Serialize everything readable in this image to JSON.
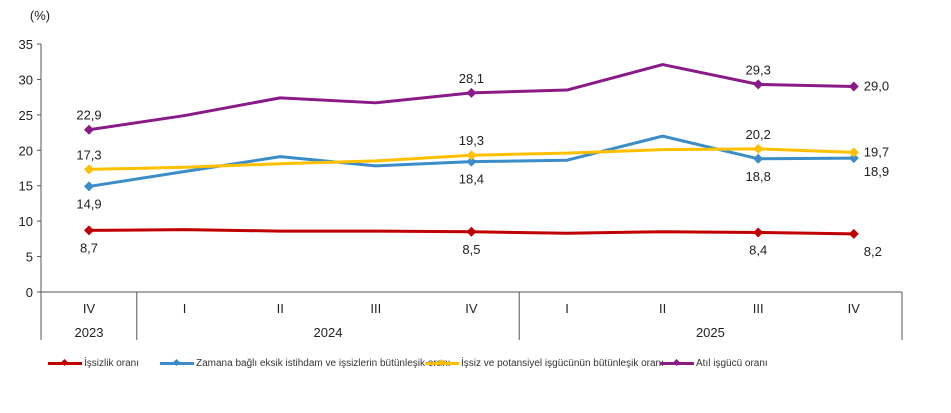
{
  "chart_data": {
    "type": "line",
    "title": "",
    "unit_label": "(%)",
    "xlabel": "",
    "ylabel": "(%)",
    "ylim": [
      0,
      35
    ],
    "yticks": [
      0,
      5,
      10,
      15,
      20,
      25,
      30,
      35
    ],
    "grid": false,
    "legend_position": "bottom",
    "categories": [
      "IV",
      "I",
      "II",
      "III",
      "IV",
      "I",
      "II",
      "III",
      "IV"
    ],
    "year_groups": [
      {
        "label": "2023",
        "span": 1
      },
      {
        "label": "2024",
        "span": 4
      },
      {
        "label": "2025",
        "span": 4
      }
    ],
    "series": [
      {
        "name": "İşsizlik oranı",
        "color": "#C00000",
        "values": [
          8.7,
          8.8,
          8.6,
          8.6,
          8.5,
          8.3,
          8.5,
          8.4,
          8.2
        ],
        "labels": [
          "8,7",
          "",
          "",
          "",
          "8,5",
          "",
          "",
          "8,4",
          "8,2"
        ],
        "label_pos": [
          "below",
          "",
          "",
          "",
          "below",
          "",
          "",
          "below",
          "below-right"
        ]
      },
      {
        "name": "Zamana bağlı eksik istihdam ve işsizlerin bütünleşik oranı",
        "color": "#3A8DC8",
        "values": [
          14.9,
          17.0,
          19.1,
          17.8,
          18.4,
          18.6,
          22.0,
          18.8,
          18.9
        ],
        "labels": [
          "14,9",
          "",
          "",
          "",
          "18,4",
          "",
          "",
          "18,8",
          "18,9"
        ],
        "label_pos": [
          "below",
          "",
          "",
          "",
          "below",
          "",
          "",
          "below",
          "below-right"
        ]
      },
      {
        "name": "İşsiz ve potansiyel işgücünün bütünleşik oranı",
        "color": "#FFC000",
        "values": [
          17.3,
          17.6,
          18.1,
          18.5,
          19.3,
          19.6,
          20.1,
          20.2,
          19.7
        ],
        "labels": [
          "17,3",
          "",
          "",
          "",
          "19,3",
          "",
          "",
          "20,2",
          "19,7"
        ],
        "label_pos": [
          "above",
          "",
          "",
          "",
          "above",
          "",
          "",
          "above",
          "right"
        ]
      },
      {
        "name": "Atıl işgücü oranı",
        "color": "#8B1A89",
        "values": [
          22.9,
          24.9,
          27.4,
          26.7,
          28.1,
          28.5,
          32.1,
          29.3,
          29.0
        ],
        "labels": [
          "22,9",
          "",
          "",
          "",
          "28,1",
          "",
          "",
          "29,3",
          "29,0"
        ],
        "label_pos": [
          "above",
          "",
          "",
          "",
          "above",
          "",
          "",
          "above",
          "right"
        ]
      }
    ]
  }
}
